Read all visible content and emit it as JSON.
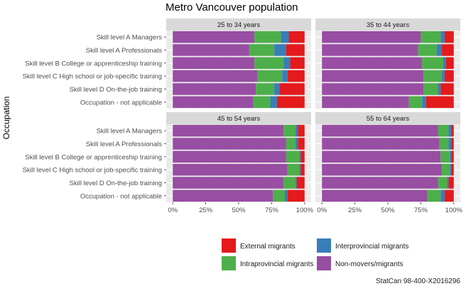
{
  "chart_data": {
    "type": "bar",
    "orientation": "horizontal",
    "stacked": "percent",
    "title": "Metro Vancouver population",
    "ylabel": "Occupation",
    "xlabel": "",
    "xlim": [
      0,
      1
    ],
    "xticks": [
      "0%",
      "25%",
      "50%",
      "75%",
      "100%"
    ],
    "categories": [
      "Skill level A Managers",
      "Skill level A Professionals",
      "Skill level B College or apprenticeship training",
      "Skill level C High school or job-specific training",
      "Skill level D On-the-job training",
      "Occupation - not applicable"
    ],
    "series_names": [
      "Non-movers/migrants",
      "Intraprovincial migrants",
      "Interprovincial migrants",
      "External migrants"
    ],
    "colors": {
      "Non-movers/migrants": "#984ea3",
      "Intraprovincial migrants": "#4daf4a",
      "Interprovincial migrants": "#377eb8",
      "External migrants": "#e41a1c"
    },
    "panels": [
      {
        "label": "25 to 34 years",
        "values": [
          [
            0.62,
            0.2,
            0.06,
            0.12
          ],
          [
            0.58,
            0.19,
            0.09,
            0.14
          ],
          [
            0.62,
            0.22,
            0.05,
            0.11
          ],
          [
            0.64,
            0.19,
            0.04,
            0.13
          ],
          [
            0.63,
            0.14,
            0.04,
            0.19
          ],
          [
            0.61,
            0.13,
            0.05,
            0.21
          ]
        ]
      },
      {
        "label": "35 to 44 years",
        "values": [
          [
            0.75,
            0.15,
            0.03,
            0.07
          ],
          [
            0.73,
            0.14,
            0.04,
            0.09
          ],
          [
            0.76,
            0.16,
            0.02,
            0.06
          ],
          [
            0.77,
            0.14,
            0.02,
            0.07
          ],
          [
            0.77,
            0.11,
            0.02,
            0.1
          ],
          [
            0.66,
            0.1,
            0.03,
            0.21
          ]
        ]
      },
      {
        "label": "45 to 54 years",
        "values": [
          [
            0.84,
            0.09,
            0.02,
            0.05
          ],
          [
            0.86,
            0.07,
            0.02,
            0.05
          ],
          [
            0.86,
            0.1,
            0.01,
            0.03
          ],
          [
            0.87,
            0.09,
            0.01,
            0.03
          ],
          [
            0.84,
            0.09,
            0.01,
            0.06
          ],
          [
            0.76,
            0.09,
            0.02,
            0.13
          ]
        ]
      },
      {
        "label": "55 to 64 years",
        "values": [
          [
            0.88,
            0.08,
            0.02,
            0.02
          ],
          [
            0.89,
            0.07,
            0.02,
            0.02
          ],
          [
            0.9,
            0.07,
            0.01,
            0.02
          ],
          [
            0.91,
            0.06,
            0.01,
            0.02
          ],
          [
            0.88,
            0.07,
            0.01,
            0.04
          ],
          [
            0.8,
            0.1,
            0.03,
            0.07
          ]
        ]
      }
    ],
    "legend": {
      "placement": "bottom",
      "entries": [
        {
          "label": "External migrants",
          "color": "#e41a1c"
        },
        {
          "label": "Interprovincial migrants",
          "color": "#377eb8"
        },
        {
          "label": "Intraprovincial migrants",
          "color": "#4daf4a"
        },
        {
          "label": "Non-movers/migrants",
          "color": "#984ea3"
        }
      ]
    },
    "grid": true
  },
  "caption": "StatCan 98-400-X2016296"
}
